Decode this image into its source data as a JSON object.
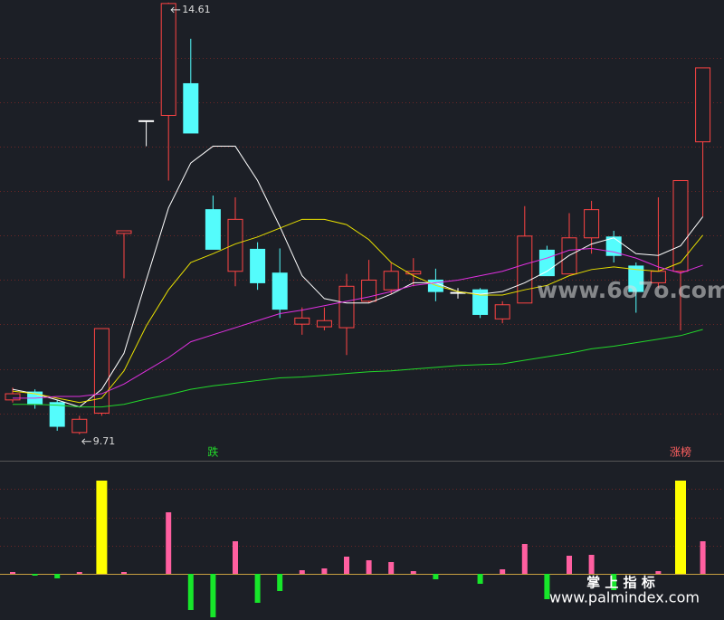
{
  "chart_data": {
    "type": "candlestick",
    "ylim": [
      9.41,
      14.64
    ],
    "yticks": [
      9.94,
      10.45,
      10.96,
      11.46,
      11.97,
      12.47,
      12.98,
      13.48,
      13.98
    ],
    "open": [
      10.1,
      10.19,
      10.07,
      9.73,
      9.95,
      11.99,
      13.27,
      13.33,
      13.69,
      12.26,
      11.56,
      11.81,
      11.54,
      10.96,
      10.93,
      10.92,
      11.22,
      11.35,
      11.53,
      11.46,
      11.32,
      11.35,
      11.02,
      11.2,
      11.8,
      11.53,
      11.94,
      11.95,
      11.62,
      11.43,
      11.56,
      13.03
    ],
    "close": [
      10.17,
      10.05,
      9.8,
      9.88,
      10.91,
      12.02,
      13.27,
      14.6,
      13.13,
      11.81,
      12.15,
      11.43,
      11.13,
      11.03,
      11.0,
      11.39,
      11.46,
      11.56,
      11.56,
      11.33,
      11.32,
      11.07,
      11.18,
      11.96,
      11.51,
      11.94,
      12.26,
      11.74,
      11.33,
      11.56,
      12.59,
      13.87
    ],
    "high": [
      10.24,
      10.22,
      10.1,
      9.92,
      10.91,
      12.02,
      13.27,
      14.61,
      14.2,
      12.42,
      12.4,
      11.89,
      11.82,
      11.15,
      11.15,
      11.53,
      11.69,
      11.66,
      11.71,
      11.59,
      11.37,
      11.37,
      11.22,
      12.3,
      11.85,
      12.22,
      12.36,
      12.02,
      11.66,
      12.4,
      12.59,
      13.87
    ],
    "low": [
      10.07,
      10.0,
      9.75,
      9.71,
      9.92,
      11.48,
      12.98,
      12.59,
      13.13,
      11.81,
      11.39,
      11.35,
      11.03,
      10.84,
      10.89,
      10.61,
      11.2,
      11.3,
      11.39,
      11.22,
      11.25,
      11.03,
      10.97,
      11.2,
      11.51,
      11.53,
      11.76,
      11.66,
      11.09,
      11.37,
      10.89,
      12.18
    ],
    "up_color": "#ff4444",
    "down_color": "#54fcfc",
    "flat_color": "#ffffff",
    "ma": [
      {
        "color": "#ffffff",
        "values": [
          10.22,
          10.17,
          10.1,
          10.02,
          10.22,
          10.63,
          11.46,
          12.28,
          12.79,
          12.98,
          12.98,
          12.59,
          12.07,
          11.51,
          11.25,
          11.2,
          11.2,
          11.3,
          11.43,
          11.43,
          11.33,
          11.3,
          11.33,
          11.43,
          11.56,
          11.74,
          11.87,
          11.94,
          11.76,
          11.74,
          11.85,
          12.18
        ]
      },
      {
        "color": "#e8e000",
        "values": [
          10.2,
          10.17,
          10.12,
          10.07,
          10.12,
          10.43,
          10.94,
          11.35,
          11.66,
          11.76,
          11.87,
          11.95,
          12.05,
          12.15,
          12.15,
          12.09,
          11.92,
          11.66,
          11.51,
          11.4,
          11.33,
          11.29,
          11.29,
          11.35,
          11.4,
          11.51,
          11.58,
          11.61,
          11.58,
          11.56,
          11.66,
          11.97
        ]
      },
      {
        "color": "#e030e0",
        "values": [
          10.12,
          10.12,
          10.14,
          10.14,
          10.17,
          10.28,
          10.43,
          10.58,
          10.76,
          10.84,
          10.92,
          11.0,
          11.08,
          11.12,
          11.17,
          11.22,
          11.27,
          11.33,
          11.4,
          11.43,
          11.46,
          11.51,
          11.56,
          11.64,
          11.71,
          11.8,
          11.82,
          11.78,
          11.71,
          11.61,
          11.54,
          11.63
        ]
      },
      {
        "color": "#22d82a",
        "values": [
          10.05,
          10.05,
          10.04,
          10.02,
          10.02,
          10.05,
          10.11,
          10.16,
          10.22,
          10.26,
          10.29,
          10.32,
          10.35,
          10.36,
          10.38,
          10.4,
          10.42,
          10.43,
          10.45,
          10.47,
          10.49,
          10.5,
          10.51,
          10.55,
          10.59,
          10.63,
          10.68,
          10.71,
          10.75,
          10.79,
          10.83,
          10.9
        ]
      }
    ],
    "signals": [
      {
        "text": "跌",
        "color": "#22d82a"
      },
      {
        "text": "涨榜",
        "color": "#ff6060"
      }
    ],
    "indicator": {
      "ylim": [
        -51,
        122
      ],
      "yticks": [
        0,
        31,
        62,
        94
      ],
      "values": [
        2,
        -2,
        -5,
        2,
        103,
        2,
        0,
        68,
        -40,
        -48,
        36,
        -32,
        -19,
        4,
        6,
        19,
        15,
        13,
        3,
        -6,
        0,
        -11,
        5,
        33,
        -28,
        20,
        21,
        -18,
        0,
        3,
        103,
        36
      ],
      "colors": [
        "#ff5fa0",
        "#17e62a",
        "#17e62a",
        "#ff5fa0",
        "#ffff00",
        "#ff5fa0",
        "#ff5fa0",
        "#ff5fa0",
        "#17e62a",
        "#17e62a",
        "#ff5fa0",
        "#17e62a",
        "#17e62a",
        "#ff5fa0",
        "#ff5fa0",
        "#ff5fa0",
        "#ff5fa0",
        "#ff5fa0",
        "#ff5fa0",
        "#17e62a",
        "#ff5fa0",
        "#17e62a",
        "#ff5fa0",
        "#ff5fa0",
        "#17e62a",
        "#ff5fa0",
        "#ff5fa0",
        "#17e62a",
        "#ff5fa0",
        "#ff5fa0",
        "#ffff00",
        "#ff5fa0"
      ]
    },
    "watermarks": [
      "www.6o7o.com",
      "掌 上 指 标",
      "www.palmindex.com"
    ]
  }
}
